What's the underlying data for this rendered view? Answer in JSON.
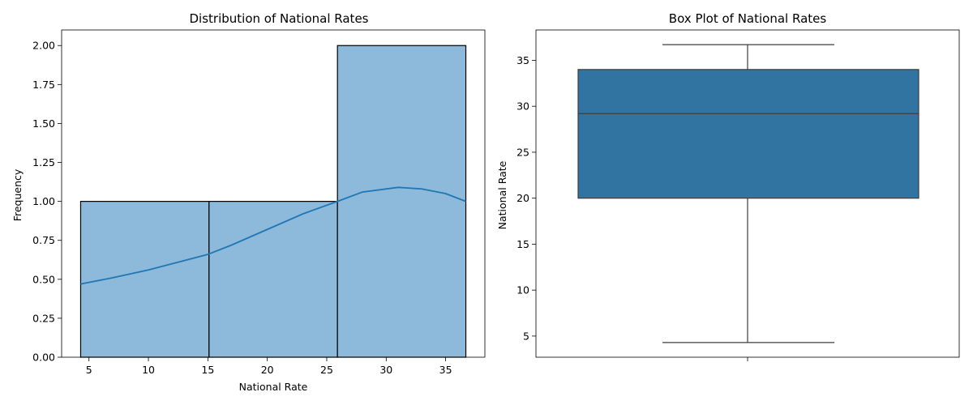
{
  "colors": {
    "hist_fill": "#8db9da",
    "hist_edge": "#000000",
    "kde_line": "#1f77b4",
    "box_fill": "#3274a1",
    "box_line": "#3d3d3d"
  },
  "chart_data": [
    {
      "type": "histogram",
      "title": "Distribution of National Rates",
      "xlabel": "National Rate",
      "ylabel": "Frequency",
      "xlim": [
        2.7,
        38.3
      ],
      "ylim": [
        0,
        2.1
      ],
      "xticks": [
        5,
        10,
        15,
        20,
        25,
        30,
        35
      ],
      "yticks": [
        0.0,
        0.25,
        0.5,
        0.75,
        1.0,
        1.25,
        1.5,
        1.75,
        2.0
      ],
      "ytick_labels": [
        "0.00",
        "0.25",
        "0.50",
        "0.75",
        "1.00",
        "1.25",
        "1.50",
        "1.75",
        "2.00"
      ],
      "bins": [
        {
          "x0": 4.3,
          "x1": 15.1,
          "count": 1
        },
        {
          "x0": 15.1,
          "x1": 25.9,
          "count": 1
        },
        {
          "x0": 25.9,
          "x1": 36.7,
          "count": 2
        }
      ],
      "kde": {
        "x": [
          4.3,
          7,
          10,
          13,
          15,
          17,
          20,
          23,
          25.9,
          28,
          31,
          33,
          35,
          36.7
        ],
        "y": [
          0.47,
          0.51,
          0.56,
          0.62,
          0.66,
          0.72,
          0.82,
          0.92,
          1.0,
          1.06,
          1.09,
          1.08,
          1.05,
          1.0
        ]
      },
      "grid": false
    },
    {
      "type": "box",
      "title": "Box Plot of National Rates",
      "ylabel": "National Rate",
      "ylim": [
        2.7,
        38.3
      ],
      "yticks": [
        5,
        10,
        15,
        20,
        25,
        30,
        35
      ],
      "stats": {
        "min": 4.3,
        "q1": 20.0,
        "median": 29.2,
        "q3": 34.0,
        "max": 36.7
      },
      "grid": false
    }
  ]
}
